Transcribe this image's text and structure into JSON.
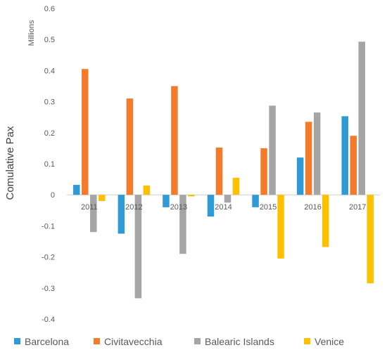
{
  "chart_data": {
    "type": "bar",
    "categories": [
      "2011",
      "2012",
      "2013",
      "2014",
      "2015",
      "2016",
      "2017"
    ],
    "series": [
      {
        "name": "Barcelona",
        "values": [
          0.032,
          -0.125,
          -0.04,
          -0.07,
          -0.04,
          0.12,
          0.253
        ]
      },
      {
        "name": "Civitavecchia",
        "values": [
          0.405,
          0.31,
          0.35,
          0.152,
          0.15,
          0.235,
          0.19
        ]
      },
      {
        "name": "Balearic Islands",
        "values": [
          -0.12,
          -0.333,
          -0.19,
          -0.025,
          0.287,
          0.265,
          0.493
        ]
      },
      {
        "name": "Venice",
        "values": [
          -0.02,
          0.03,
          -0.005,
          0.055,
          -0.205,
          -0.168,
          -0.285
        ]
      }
    ],
    "colors": [
      "#2e9bd6",
      "#f47b2b",
      "#a5a5a5",
      "#ffc000"
    ],
    "ylim": [
      -0.4,
      0.6
    ],
    "yticks": [
      -0.4,
      -0.3,
      -0.2,
      -0.1,
      0,
      0.1,
      0.2,
      0.3,
      0.4,
      0.5,
      0.6
    ],
    "ytick_labels": [
      "-0.4",
      "-0.3",
      "-0.2",
      "-0.1",
      "0",
      "0.1",
      "0.2",
      "0.3",
      "0.4",
      "0.5",
      "0.6"
    ],
    "ylabel": "Comulative Pax",
    "yunit": "Millions",
    "xlabel": "",
    "title": "",
    "grid": false,
    "legend_position": "bottom"
  }
}
